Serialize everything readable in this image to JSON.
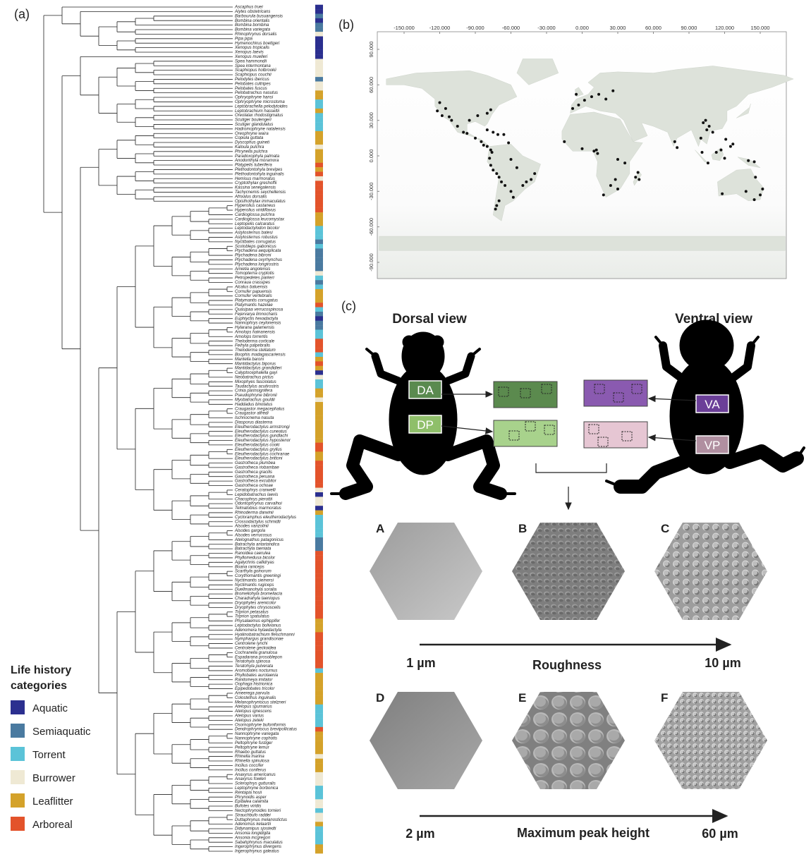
{
  "panels": {
    "a": "(a)",
    "b": "(b)",
    "c": "(c)"
  },
  "phylogeny": {
    "tips": [
      "Ascaphus truei",
      "Alytes obstetricans",
      "Barbourula busuangensis",
      "Bombina orientalis",
      "Bombina bombina",
      "Bombina variegata",
      "Rhinophrynus dorsalis",
      "Pipa pipa",
      "Hymenochirus boettgeri",
      "Xenopus tropicalis",
      "Xenopus laevis",
      "Xenopus muelleri",
      "Spea hammondii",
      "Spea intermontana",
      "Scaphiopus holbrookii",
      "Scaphiopus couchii",
      "Pelodytes ibericus",
      "Pelobates cultripes",
      "Pelobates fuscus",
      "Pelobatrachus nasutus",
      "Ophryophryne hansi",
      "Ophryophryne microstoma",
      "Leptobrachella pelodytoides",
      "Leptobrachium hasseltii",
      "Oreolalax rhodostigmatus",
      "Scutiger boulengeri",
      "Scutiger glandulatus",
      "Hadromophryne natalensis",
      "Oreophryne waira",
      "Copiula guttata",
      "Dyscophus guineti",
      "Kaloula pulchra",
      "Phrynella pulchra",
      "Paradoxophyla palmata",
      "Anodonthyla moramora",
      "Platypelis tuberifera",
      "Plethodontohyla brevipes",
      "Plethodontohyla inguinalis",
      "Hemisus marmoratus",
      "Cryptothylax greshoffii",
      "Kassina senegalensis",
      "Tachycnemis seychellensis",
      "Afrixalus dorsalis",
      "Opisthothylax immaculatus",
      "Hyperolius castaneus",
      "Hyperolius viridiflavus",
      "Cardioglossa pulchra",
      "Cardioglossa leucomystax",
      "Leptopelis calcaratus",
      "Leptodactylodon bicolor",
      "Astylosternus batesi",
      "Astylosternus robustus",
      "Nyctibates corrugatus",
      "Scotobleps gabonicus",
      "Ptychadena aequiplicata",
      "Ptychadena bibroni",
      "Ptychadena oxyrhynchus",
      "Ptychadena longirostris",
      "Amietia angolensis",
      "Tomopterna cryptotis",
      "Petropedetes parkeri",
      "Conraua crassipes",
      "Alcalus baluensis",
      "Cornufer papuensis",
      "Cornufer vertebralis",
      "Platymantis corrugatus",
      "Platymantis hazelae",
      "Quasipaa verrucospinosa",
      "Fejervarya limnocharis",
      "Euphlyctis hexadactyla",
      "Nannophrys ceylonensis",
      "Hylarana galamensis",
      "Amolops hainanensis",
      "Amolops torrentis",
      "Theloderma corticale",
      "Feihyla palpebralis",
      "Theloderma stellatum",
      "Boophis madagascariensis",
      "Mantella baroni",
      "Mantidactylus biporus",
      "Mantidactylus grandidieri",
      "Calyptocephalella gayi",
      "Neobatrachus pictus",
      "Mixophyes fasciolatus",
      "Taudactylus acutirostris",
      "Crinia parinsignifera",
      "Pseudophryne bibronii",
      "Myobatrachus gouldii",
      "Haddadus binotatus",
      "Craugastor megacephalus",
      "Craugastor alfredi",
      "Ischnocnema nasuta",
      "Diasporus diastema",
      "Eleutherodactylus armstrongi",
      "Eleutherodactylus cuneatus",
      "Eleutherodactylus gundlachi",
      "Eleutherodactylus hypostenor",
      "Eleutherodactylus cooki",
      "Eleutherodactylus gryllus",
      "Eleutherodactylus cochranae",
      "Eleutherodactylus brittoni",
      "Gastrotheca plumbea",
      "Gastrotheca riobambae",
      "Gastrotheca gracilis",
      "Gastrotheca peruana",
      "Gastrotheca excubitor",
      "Gastrotheca ochoae",
      "Ceratophrys cranwelli",
      "Lepidobatrachus laevis",
      "Chacophrys pierottii",
      "Odontophrynus carvalhoi",
      "Telmatobius marmoratus",
      "Rhinoderma darwinii",
      "Cycloramphus eleutherodactylus",
      "Crossodactylus schmidti",
      "Alsodes vanzolinii",
      "Alsodes gargola",
      "Alsodes verrucosus",
      "Atelognathus patagonicus",
      "Batrachyla antartandica",
      "Batrachyla taeniata",
      "Ranoidea caerulea",
      "Phyllomedusa bicolor",
      "Agalychnis callidryas",
      "Boana raniceps",
      "Scarthyla goinorum",
      "Corythomantis greeningi",
      "Nyctimantis siemersi",
      "Nyctimantis rugiceps",
      "Duellmanohyla soralia",
      "Bromeliohyla bromeliacia",
      "Charadrahyla taeniopus",
      "Dryophytes arenicolor",
      "Dryophytes chrysoscelis",
      "Triprion petasatus",
      "Triprion spatulatus",
      "Physalaemus ephippifer",
      "Leptodactylus bolivianus",
      "Adenomera hylaedactyla",
      "Hyalinobatrachium fleischmanni",
      "Nymphargus grandisonae",
      "Centrolene lynchi",
      "Centrolene geckoidea",
      "Cochranella granulosa",
      "Espadarana prosoblepon",
      "Teratohyla spinosa",
      "Teratohyla pulverata",
      "Aromobates nocturnus",
      "Phyllobates aurotaenia",
      "Ranitomeya imitator",
      "Oophaga histrionica",
      "Epipedobates tricolor",
      "Ameerega parvula",
      "Colostethus inguinalis",
      "Melanophryniscus stelzneri",
      "Atelopus spumarius",
      "Atelopus ignescens",
      "Atelopus varius",
      "Atelopus zeteki",
      "Osornophryne bufoniformis",
      "Dendrophryniscus brevipollicatus",
      "Nannophryne variegata",
      "Nannophryne cophotis",
      "Peltophryne fustiger",
      "Peltophryne lemur",
      "Rhaebo guttatus",
      "Rhinella marina",
      "Rhinella spinulosa",
      "Incilius coccifer",
      "Incilius coniferus",
      "Anaxyrus americanus",
      "Anaxyrus fowleri",
      "Sclerophrys gutturalis",
      "Leptophryne borbonica",
      "Rentapia hosii",
      "Phrynoidis asper",
      "Epidalea calamita",
      "Bufotes viridis",
      "Nectophrynoides tornieri",
      "Strauchbufo raddei",
      "Duttaphrynus melanostictus",
      "Adenomus kelaartii",
      "Didynamipus sjostedti",
      "Ansonia longidigita",
      "Ansonia mcgregori",
      "Sabahphrynus maculatus",
      "Ingerophrynus divergens",
      "Ingerophrynus galeatus"
    ],
    "category": [
      0,
      0,
      1,
      0,
      1,
      1,
      3,
      0,
      0,
      0,
      0,
      0,
      3,
      3,
      3,
      3,
      1,
      3,
      3,
      4,
      4,
      2,
      2,
      4,
      2,
      2,
      2,
      2,
      4,
      4,
      4,
      3,
      4,
      4,
      4,
      5,
      4,
      5,
      3,
      5,
      5,
      5,
      5,
      5,
      5,
      5,
      4,
      4,
      4,
      2,
      2,
      2,
      1,
      2,
      1,
      1,
      1,
      1,
      1,
      3,
      2,
      1,
      2,
      4,
      4,
      4,
      5,
      2,
      1,
      0,
      1,
      1,
      2,
      2,
      5,
      5,
      5,
      2,
      4,
      5,
      4,
      0,
      3,
      2,
      2,
      4,
      4,
      3,
      4,
      4,
      4,
      4,
      4,
      4,
      4,
      4,
      4,
      5,
      5,
      4,
      4,
      5,
      5,
      5,
      5,
      5,
      5,
      3,
      0,
      3,
      3,
      0,
      4,
      2,
      2,
      2,
      2,
      2,
      1,
      1,
      1,
      5,
      5,
      5,
      5,
      5,
      5,
      5,
      5,
      5,
      5,
      5,
      5,
      5,
      5,
      5,
      4,
      4,
      4,
      5,
      5,
      5,
      5,
      5,
      5,
      5,
      5,
      2,
      4,
      4,
      4,
      4,
      4,
      4,
      4,
      2,
      2,
      2,
      2,
      2,
      5,
      4,
      4,
      4,
      4,
      4,
      3,
      4,
      4,
      4,
      3,
      3,
      3,
      2,
      2,
      2,
      3,
      3,
      2,
      3,
      3,
      4,
      2,
      2,
      2,
      2,
      4,
      4
    ]
  },
  "legend": {
    "title": "Life history categories",
    "items": [
      {
        "label": "Aquatic",
        "color": "#2b2f8f"
      },
      {
        "label": "Semiaquatic",
        "color": "#4a7aa0"
      },
      {
        "label": "Torrent",
        "color": "#5bc3d8"
      },
      {
        "label": "Burrower",
        "color": "#efe9d4"
      },
      {
        "label": "Leaflitter",
        "color": "#d4a22a"
      },
      {
        "label": "Arboreal",
        "color": "#e3532b"
      }
    ]
  },
  "map": {
    "xticks": [
      {
        "value": -150,
        "label": "-150.000"
      },
      {
        "value": -120,
        "label": "-120.000"
      },
      {
        "value": -90,
        "label": "-90.000"
      },
      {
        "value": -60,
        "label": "-60.000"
      },
      {
        "value": -30,
        "label": "-30.000"
      },
      {
        "value": 0,
        "label": "0.000"
      },
      {
        "value": 30,
        "label": "30.000"
      },
      {
        "value": 60,
        "label": "60.000"
      },
      {
        "value": 90,
        "label": "90.000"
      },
      {
        "value": 120,
        "label": "120.000"
      },
      {
        "value": 150,
        "label": "150.000"
      }
    ],
    "yticks": [
      {
        "value": 90,
        "label": "90.000"
      },
      {
        "value": 60,
        "label": "60.000"
      },
      {
        "value": 30,
        "label": "30.000"
      },
      {
        "value": 0,
        "label": "0.000"
      },
      {
        "value": -30,
        "label": "-30.000"
      },
      {
        "value": -60,
        "label": "-60.000"
      },
      {
        "value": -90,
        "label": "-90.000"
      }
    ],
    "points": [
      [
        -122,
        38
      ],
      [
        -118,
        34
      ],
      [
        -112,
        33
      ],
      [
        -110,
        30
      ],
      [
        -105,
        25
      ],
      [
        -100,
        20
      ],
      [
        -97,
        19
      ],
      [
        -90,
        15
      ],
      [
        -85,
        12
      ],
      [
        -83,
        9
      ],
      [
        -80,
        8
      ],
      [
        -77,
        5
      ],
      [
        -76,
        3
      ],
      [
        -80,
        36
      ],
      [
        -77,
        39
      ],
      [
        -95,
        30
      ],
      [
        -88,
        34
      ],
      [
        -120,
        45
      ],
      [
        -115,
        40
      ],
      [
        -71,
        18
      ],
      [
        -66,
        18
      ],
      [
        -75,
        20
      ],
      [
        -80,
        22
      ],
      [
        -62,
        11
      ],
      [
        -78,
        -2
      ],
      [
        -77,
        -8
      ],
      [
        -75,
        -12
      ],
      [
        -72,
        -15
      ],
      [
        -70,
        -18
      ],
      [
        -68,
        -22
      ],
      [
        -65,
        -25
      ],
      [
        -60,
        -30
      ],
      [
        -58,
        -35
      ],
      [
        -70,
        -38
      ],
      [
        -72,
        -42
      ],
      [
        -73,
        -45
      ],
      [
        -47,
        -22
      ],
      [
        -43,
        -20
      ],
      [
        -40,
        -15
      ],
      [
        -60,
        -3
      ],
      [
        -55,
        -10
      ],
      [
        -50,
        -25
      ],
      [
        -8,
        40
      ],
      [
        -3,
        43
      ],
      [
        2,
        47
      ],
      [
        8,
        50
      ],
      [
        14,
        52
      ],
      [
        20,
        48
      ],
      [
        -5,
        52
      ],
      [
        26,
        55
      ],
      [
        -15,
        12
      ],
      [
        0,
        6
      ],
      [
        10,
        4
      ],
      [
        13,
        2
      ],
      [
        12,
        5
      ],
      [
        30,
        -3
      ],
      [
        36,
        -6
      ],
      [
        28,
        -20
      ],
      [
        30,
        -28
      ],
      [
        18,
        -33
      ],
      [
        24,
        -25
      ],
      [
        45,
        -18
      ],
      [
        48,
        -20
      ],
      [
        47,
        -14
      ],
      [
        80,
        7
      ],
      [
        78,
        12
      ],
      [
        100,
        15
      ],
      [
        105,
        22
      ],
      [
        110,
        20
      ],
      [
        102,
        28
      ],
      [
        104,
        30
      ],
      [
        107,
        25
      ],
      [
        117,
        5
      ],
      [
        113,
        3
      ],
      [
        101,
        3
      ],
      [
        106,
        -6
      ],
      [
        120,
        -2
      ],
      [
        125,
        8
      ],
      [
        121,
        14
      ],
      [
        127,
        10
      ],
      [
        145,
        -5
      ],
      [
        140,
        -4
      ],
      [
        118,
        -32
      ],
      [
        138,
        -30
      ],
      [
        145,
        -37
      ],
      [
        152,
        -28
      ],
      [
        150,
        -33
      ],
      [
        146,
        -18
      ]
    ]
  },
  "surface": {
    "dorsal_title": "Dorsal view",
    "ventral_title": "Ventral view",
    "regions": [
      "DA",
      "DP",
      "VA",
      "VP"
    ],
    "samples": [
      "A",
      "B",
      "C",
      "D",
      "E",
      "F"
    ],
    "roughness": {
      "min": "1 µm",
      "label": "Roughness",
      "max": "10 µm"
    },
    "peak": {
      "min": "2 µm",
      "label": "Maximum peak height",
      "max": "60 µm"
    }
  }
}
